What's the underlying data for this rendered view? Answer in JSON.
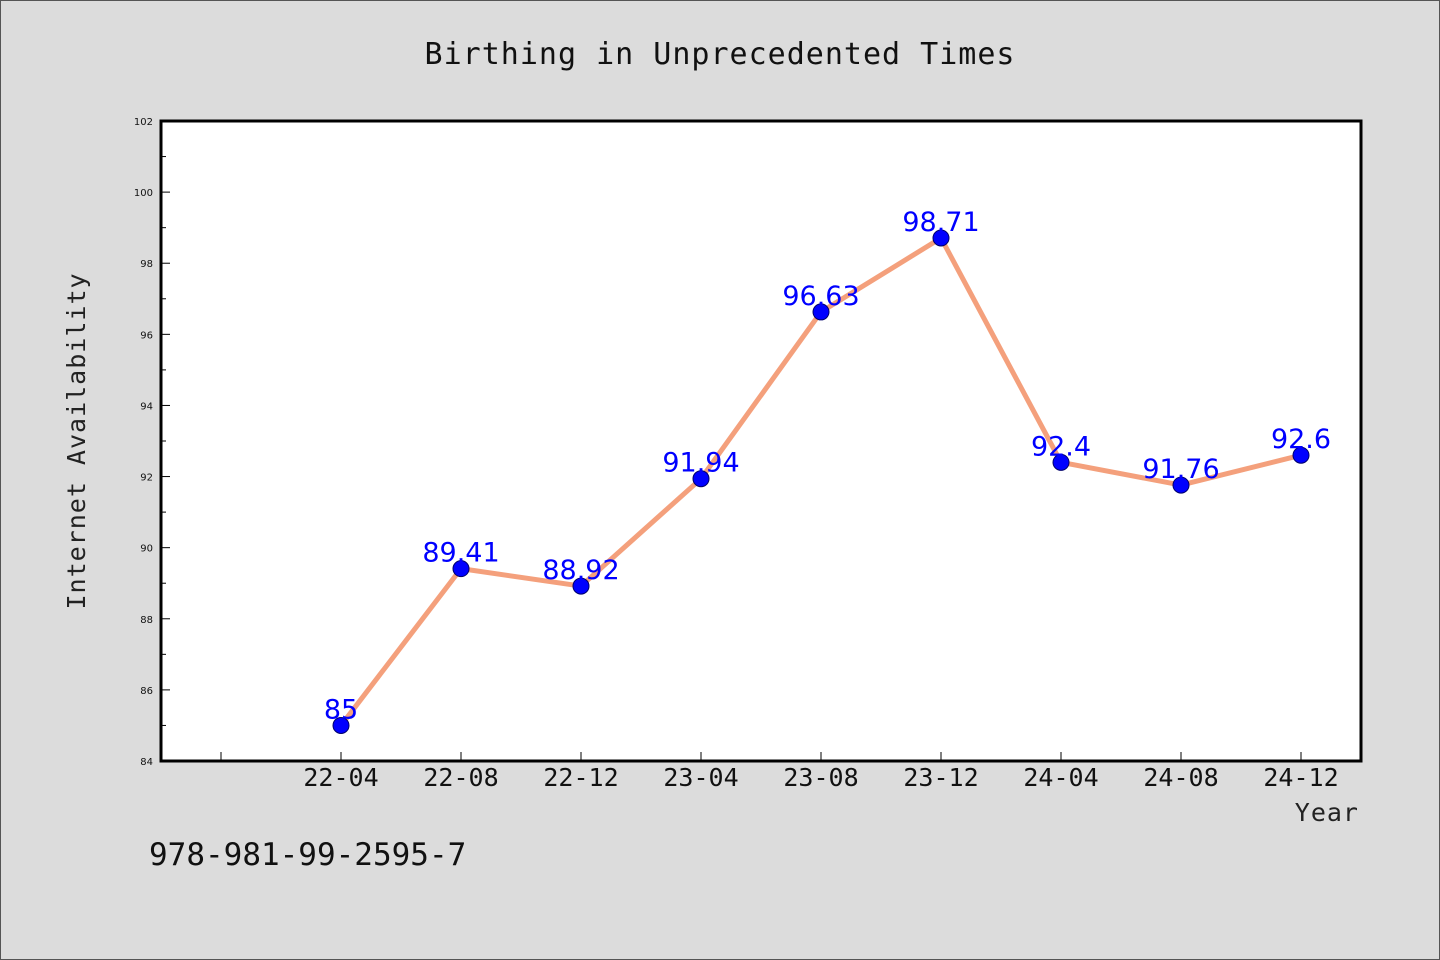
{
  "chart_data": {
    "type": "line",
    "title": "Birthing in Unprecedented Times",
    "xlabel": "Year",
    "ylabel": "Internet Availability",
    "categories": [
      "22-04",
      "22-08",
      "22-12",
      "23-04",
      "23-08",
      "23-12",
      "24-04",
      "24-08",
      "24-12"
    ],
    "series": [
      {
        "values": [
          85,
          89.41,
          88.92,
          91.94,
          96.63,
          98.71,
          92.4,
          91.76,
          92.6
        ],
        "labels": [
          "85",
          "89.41",
          "88.92",
          "91.94",
          "96.63",
          "98.71",
          "92.4",
          "91.76",
          "92.6"
        ],
        "line_color": "#f4a07c",
        "marker_color": "#0000ff",
        "label_color": "#0000ff"
      }
    ],
    "ylim": [
      84,
      102
    ],
    "yticks": [
      "84",
      "86",
      "88",
      "90",
      "92",
      "94",
      "96",
      "98",
      "100",
      "102"
    ],
    "grid": false,
    "legend": "none"
  },
  "footnote": "978-981-99-2595-7",
  "colors": {
    "background": "#dcdcdc",
    "plot_area": "#ffffff",
    "frame": "#000000"
  }
}
